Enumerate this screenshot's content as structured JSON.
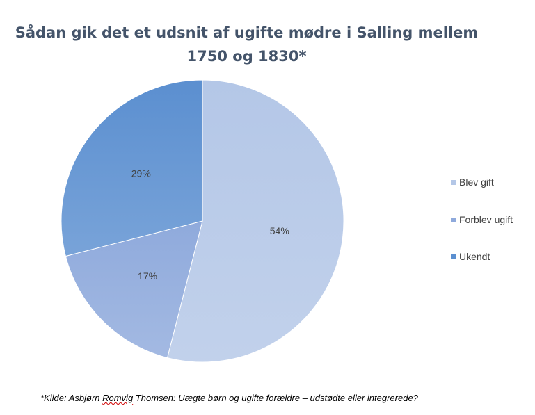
{
  "chart_data": {
    "type": "pie",
    "title_lines": [
      "Sådan gik det et udsnit af ugifte mødre i Salling mellem",
      "1750 og 1830*"
    ],
    "slices": [
      {
        "label": "Blev gift",
        "value": 54,
        "data_label": "54%",
        "color": "#b4c7e7"
      },
      {
        "label": "Forblev ugift",
        "value": 17,
        "data_label": "17%",
        "color": "#8faadc"
      },
      {
        "label": "Ukendt",
        "value": 29,
        "data_label": "29%",
        "color": "#5b8fd0"
      }
    ],
    "legend_position": "right"
  },
  "footnote": {
    "prefix": "*Kilde: Asbjørn ",
    "misspelled_word": "Romvig",
    "suffix": " Thomsen: Uægte børn og ugifte forældre – udstødte eller integrerede?"
  }
}
